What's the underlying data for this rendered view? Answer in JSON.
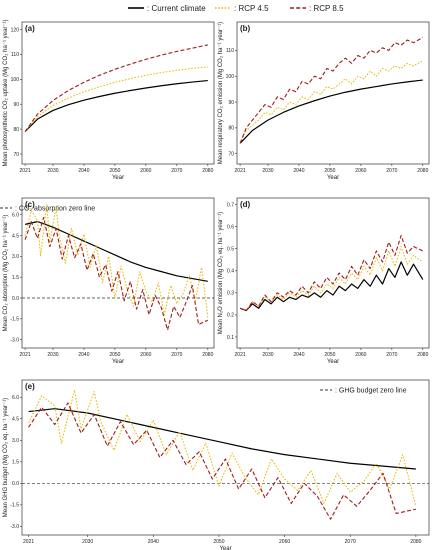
{
  "legend": {
    "items": [
      {
        "label": ": Current climate",
        "color": "#000000",
        "dash": "solid"
      },
      {
        "label": ": RCP 4.5",
        "color": "#e6b800",
        "dash": "dotted"
      },
      {
        "label": ": RCP 8.5",
        "color": "#a31a1a",
        "dash": "dashed"
      }
    ]
  },
  "chart_data": [
    {
      "type": "line",
      "panel": "(a)",
      "ylabel": "Mean photosynthetic CO₂ uptake (Mg CO₂ ha⁻¹ year⁻¹)",
      "xlabel": "Year",
      "x_ticks": [
        2021,
        2030,
        2040,
        2050,
        2060,
        2070,
        2080
      ],
      "y_ticks": [
        70,
        80,
        90,
        100,
        110,
        120
      ],
      "xlim": [
        2020,
        2082
      ],
      "ylim": [
        66,
        123
      ],
      "series": [
        {
          "name": "Current climate",
          "x": [
            2021,
            2025,
            2030,
            2035,
            2040,
            2045,
            2050,
            2055,
            2060,
            2065,
            2070,
            2075,
            2080
          ],
          "values": [
            79,
            84,
            87.5,
            89.8,
            91.6,
            93.1,
            94.4,
            95.5,
            96.5,
            97.4,
            98.2,
            98.9,
            99.5
          ]
        },
        {
          "name": "RCP 4.5",
          "x": [
            2021,
            2025,
            2030,
            2035,
            2040,
            2045,
            2050,
            2055,
            2060,
            2065,
            2070,
            2075,
            2080
          ],
          "values": [
            79,
            85,
            89.5,
            92.5,
            95,
            97,
            98.8,
            100.3,
            101.6,
            102.7,
            103.6,
            104.4,
            105
          ]
        },
        {
          "name": "RCP 8.5",
          "x": [
            2021,
            2025,
            2030,
            2035,
            2040,
            2045,
            2050,
            2055,
            2060,
            2065,
            2070,
            2075,
            2080
          ],
          "values": [
            79,
            86,
            91.5,
            95.5,
            98.8,
            101.6,
            104,
            106.1,
            108,
            109.7,
            111.2,
            112.5,
            113.8
          ]
        }
      ]
    },
    {
      "type": "line",
      "panel": "(b)",
      "ylabel": "Mean respiratory CO₂ emission (Mg CO₂ ha⁻¹ year⁻¹)",
      "xlabel": "Year",
      "x_ticks": [
        2021,
        2030,
        2040,
        2050,
        2060,
        2070,
        2080
      ],
      "y_ticks": [
        70,
        80,
        90,
        100,
        110
      ],
      "xlim": [
        2020,
        2082
      ],
      "ylim": [
        66,
        121
      ],
      "series": [
        {
          "name": "Current climate",
          "x": [
            2021,
            2025,
            2030,
            2035,
            2040,
            2045,
            2050,
            2055,
            2060,
            2065,
            2070,
            2075,
            2080
          ],
          "values": [
            74,
            79,
            83,
            86,
            88.5,
            90.5,
            92.3,
            93.8,
            95,
            96,
            97,
            97.8,
            98.5
          ]
        },
        {
          "name": "RCP 4.5",
          "x": [
            2021,
            2023,
            2025,
            2027,
            2029,
            2031,
            2033,
            2035,
            2037,
            2039,
            2041,
            2043,
            2045,
            2047,
            2049,
            2051,
            2053,
            2055,
            2057,
            2059,
            2061,
            2063,
            2065,
            2067,
            2069,
            2071,
            2073,
            2075,
            2077,
            2080
          ],
          "values": [
            74,
            79,
            81,
            83,
            86,
            85,
            88,
            87,
            90,
            89,
            92,
            91,
            94,
            93,
            96,
            95,
            97,
            99,
            97,
            100,
            99,
            102,
            100,
            103,
            102,
            104,
            103,
            105,
            104,
            106
          ]
        },
        {
          "name": "RCP 8.5",
          "x": [
            2021,
            2023,
            2025,
            2027,
            2029,
            2031,
            2033,
            2035,
            2037,
            2039,
            2041,
            2043,
            2045,
            2047,
            2049,
            2051,
            2053,
            2055,
            2057,
            2059,
            2061,
            2063,
            2065,
            2067,
            2069,
            2071,
            2073,
            2075,
            2077,
            2080
          ],
          "values": [
            74,
            80,
            83,
            86,
            89,
            88,
            92,
            91,
            95,
            94,
            98,
            97,
            100,
            99,
            103,
            102,
            105,
            107,
            105,
            108,
            107,
            110,
            109,
            111,
            110,
            113,
            112,
            114,
            113,
            115
          ]
        }
      ]
    },
    {
      "type": "line",
      "panel": "(c)",
      "ylabel": "Mean CO₂ absorption (Mg CO₂ ha⁻¹ year⁻¹)",
      "xlabel": "Year",
      "x_ticks": [
        2021,
        2030,
        2040,
        2050,
        2060,
        2070,
        2080
      ],
      "y_ticks": [
        -3.0,
        -1.5,
        0.0,
        1.5,
        3.0,
        4.5,
        6.0
      ],
      "xlim": [
        2020,
        2082
      ],
      "ylim": [
        -3.6,
        7.2
      ],
      "zero_line_label": ": CO₂ absorption zero line",
      "series": [
        {
          "name": "Current climate",
          "x": [
            2021,
            2025,
            2030,
            2035,
            2040,
            2045,
            2050,
            2055,
            2060,
            2065,
            2070,
            2075,
            2080
          ],
          "values": [
            5.3,
            5.5,
            5.1,
            4.6,
            4.1,
            3.6,
            3.1,
            2.6,
            2.2,
            1.9,
            1.6,
            1.4,
            1.2
          ]
        },
        {
          "name": "RCP 4.5",
          "x": [
            2021,
            2023,
            2025,
            2026,
            2028,
            2029,
            2031,
            2032,
            2034,
            2036,
            2038,
            2040,
            2042,
            2044,
            2046,
            2048,
            2050,
            2052,
            2054,
            2056,
            2058,
            2060,
            2062,
            2064,
            2066,
            2068,
            2070,
            2072,
            2074,
            2076,
            2078,
            2080
          ],
          "values": [
            4.5,
            6.3,
            5.6,
            3.0,
            6.7,
            4.0,
            6.6,
            4.5,
            2.5,
            5.0,
            3.1,
            4.6,
            2.2,
            3.8,
            1.1,
            3.0,
            0.0,
            2.3,
            0.6,
            -0.6,
            1.9,
            0.5,
            -0.3,
            1.1,
            -1.2,
            0.9,
            -0.4,
            0.3,
            1.6,
            -0.2,
            2.2,
            -1.4
          ]
        },
        {
          "name": "RCP 8.5",
          "x": [
            2021,
            2023,
            2025,
            2027,
            2029,
            2031,
            2033,
            2035,
            2037,
            2039,
            2041,
            2043,
            2045,
            2047,
            2049,
            2051,
            2053,
            2055,
            2057,
            2059,
            2061,
            2063,
            2065,
            2067,
            2069,
            2071,
            2073,
            2075,
            2077,
            2080
          ],
          "values": [
            4.2,
            5.5,
            4.3,
            5.8,
            3.7,
            5.0,
            2.8,
            4.5,
            2.9,
            3.9,
            2.0,
            3.2,
            1.5,
            2.4,
            0.5,
            1.9,
            -0.2,
            1.2,
            -0.8,
            0.6,
            -1.2,
            0.2,
            -0.7,
            -2.3,
            -0.6,
            -1.4,
            -0.3,
            0.9,
            -1.9,
            -1.6
          ]
        }
      ]
    },
    {
      "type": "line",
      "panel": "(d)",
      "ylabel": "Mean N₂O emission (Mg CO₂ eq. ha⁻¹ year⁻¹)",
      "xlabel": "Year",
      "x_ticks": [
        2021,
        2030,
        2040,
        2050,
        2060,
        2070,
        2080
      ],
      "y_ticks": [
        0.1,
        0.2,
        0.3,
        0.4,
        0.5,
        0.6,
        0.7
      ],
      "xlim": [
        2020,
        2082
      ],
      "ylim": [
        0.05,
        0.73
      ],
      "series": [
        {
          "name": "Current climate",
          "x": [
            2021,
            2023,
            2025,
            2027,
            2029,
            2031,
            2033,
            2035,
            2037,
            2039,
            2041,
            2043,
            2045,
            2047,
            2049,
            2051,
            2053,
            2055,
            2057,
            2059,
            2061,
            2063,
            2065,
            2067,
            2069,
            2071,
            2073,
            2075,
            2077,
            2080
          ],
          "values": [
            0.23,
            0.22,
            0.25,
            0.23,
            0.27,
            0.25,
            0.28,
            0.26,
            0.28,
            0.27,
            0.29,
            0.28,
            0.3,
            0.28,
            0.31,
            0.29,
            0.33,
            0.31,
            0.34,
            0.32,
            0.36,
            0.33,
            0.38,
            0.34,
            0.41,
            0.37,
            0.44,
            0.38,
            0.43,
            0.36
          ]
        },
        {
          "name": "RCP 4.5",
          "x": [
            2021,
            2023,
            2025,
            2027,
            2029,
            2031,
            2033,
            2035,
            2037,
            2039,
            2041,
            2043,
            2045,
            2047,
            2049,
            2051,
            2053,
            2055,
            2057,
            2059,
            2061,
            2063,
            2065,
            2067,
            2069,
            2071,
            2073,
            2075,
            2077,
            2080
          ],
          "values": [
            0.23,
            0.22,
            0.26,
            0.24,
            0.28,
            0.26,
            0.29,
            0.27,
            0.3,
            0.28,
            0.31,
            0.29,
            0.33,
            0.3,
            0.34,
            0.32,
            0.37,
            0.34,
            0.39,
            0.36,
            0.42,
            0.38,
            0.46,
            0.4,
            0.49,
            0.42,
            0.51,
            0.43,
            0.47,
            0.44
          ]
        },
        {
          "name": "RCP 8.5",
          "x": [
            2021,
            2023,
            2025,
            2027,
            2029,
            2031,
            2033,
            2035,
            2037,
            2039,
            2041,
            2043,
            2045,
            2047,
            2049,
            2051,
            2053,
            2055,
            2057,
            2059,
            2061,
            2063,
            2065,
            2067,
            2069,
            2071,
            2073,
            2075,
            2077,
            2080
          ],
          "values": [
            0.23,
            0.22,
            0.26,
            0.24,
            0.29,
            0.26,
            0.3,
            0.28,
            0.31,
            0.29,
            0.33,
            0.3,
            0.35,
            0.32,
            0.37,
            0.34,
            0.39,
            0.36,
            0.42,
            0.38,
            0.45,
            0.41,
            0.49,
            0.44,
            0.53,
            0.47,
            0.56,
            0.48,
            0.51,
            0.49
          ]
        }
      ]
    },
    {
      "type": "line",
      "panel": "(e)",
      "ylabel": "Mean GHG budget (Mg CO₂ eq. ha⁻¹ year⁻¹)",
      "xlabel": "Year",
      "x_ticks": [
        2021,
        2030,
        2040,
        2050,
        2060,
        2070,
        2080
      ],
      "y_ticks": [
        -3.0,
        -1.5,
        0.0,
        1.5,
        3.0,
        4.5,
        6.0
      ],
      "xlim": [
        2020,
        2082
      ],
      "ylim": [
        -3.6,
        7.2
      ],
      "zero_line_label": ": GHG budget zero line",
      "series": [
        {
          "name": "Current climate",
          "x": [
            2021,
            2025,
            2030,
            2035,
            2040,
            2045,
            2050,
            2055,
            2060,
            2065,
            2070,
            2075,
            2080
          ],
          "values": [
            5.0,
            5.2,
            4.9,
            4.4,
            3.9,
            3.4,
            2.9,
            2.4,
            2.0,
            1.7,
            1.4,
            1.2,
            1.0
          ]
        },
        {
          "name": "RCP 4.5",
          "x": [
            2021,
            2023,
            2025,
            2026,
            2028,
            2029,
            2031,
            2032,
            2034,
            2036,
            2038,
            2040,
            2042,
            2044,
            2046,
            2048,
            2050,
            2052,
            2054,
            2056,
            2058,
            2060,
            2062,
            2064,
            2066,
            2068,
            2070,
            2072,
            2074,
            2076,
            2078,
            2080
          ],
          "values": [
            4.2,
            6.1,
            5.4,
            2.8,
            6.5,
            3.8,
            6.4,
            4.3,
            2.3,
            4.8,
            2.9,
            4.4,
            2.0,
            3.6,
            0.9,
            2.8,
            -0.2,
            2.1,
            0.4,
            -0.8,
            1.7,
            0.3,
            -0.5,
            0.9,
            -1.4,
            0.7,
            -0.6,
            0.1,
            1.4,
            -0.4,
            2.0,
            -1.6
          ]
        },
        {
          "name": "RCP 8.5",
          "x": [
            2021,
            2023,
            2025,
            2027,
            2029,
            2031,
            2033,
            2035,
            2037,
            2039,
            2041,
            2043,
            2045,
            2047,
            2049,
            2051,
            2053,
            2055,
            2057,
            2059,
            2061,
            2063,
            2065,
            2067,
            2069,
            2071,
            2073,
            2075,
            2077,
            2080
          ],
          "values": [
            3.9,
            5.3,
            4.1,
            5.6,
            3.5,
            4.8,
            2.6,
            4.3,
            2.7,
            3.7,
            1.8,
            3.0,
            1.3,
            2.2,
            0.3,
            1.7,
            -0.4,
            1.0,
            -1.0,
            0.4,
            -1.4,
            0.0,
            -0.9,
            -2.5,
            -0.8,
            -1.6,
            -0.5,
            0.7,
            -2.1,
            -1.8
          ]
        }
      ]
    }
  ]
}
